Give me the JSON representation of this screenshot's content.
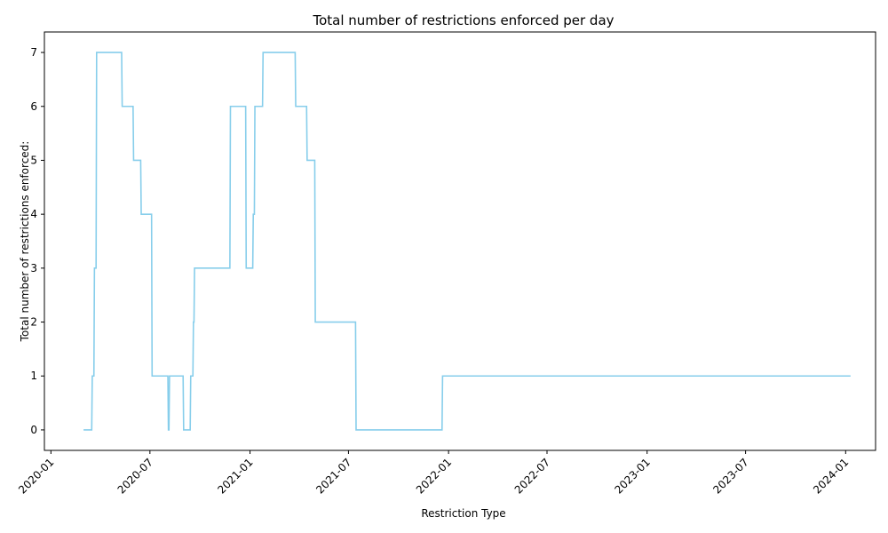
{
  "chart_data": {
    "type": "line",
    "title": "Total number of restrictions enforced per day",
    "xlabel": "Restriction Type",
    "ylabel": "Total number of restrictions enforced:",
    "xlim": [
      "2019-12-20",
      "2024-02-25"
    ],
    "ylim": [
      -0.38,
      7.38
    ],
    "yticks": [
      0,
      1,
      2,
      3,
      4,
      5,
      6,
      7
    ],
    "xticks": [
      "2020-01",
      "2020-07",
      "2021-01",
      "2021-07",
      "2022-01",
      "2022-07",
      "2023-01",
      "2023-07",
      "2024-01"
    ],
    "grid": false,
    "legend": "none",
    "line_color": "#87ceeb",
    "series": [
      {
        "x": [
          "2020-03-01",
          "2020-03-16",
          "2020-03-17",
          "2020-03-20",
          "2020-03-21",
          "2020-03-24",
          "2020-03-25",
          "2020-05-10",
          "2020-05-11",
          "2020-05-31",
          "2020-06-01",
          "2020-06-14",
          "2020-06-15",
          "2020-07-04",
          "2020-07-05",
          "2020-08-03",
          "2020-08-04",
          "2020-08-05",
          "2020-08-06",
          "2020-08-31",
          "2020-09-01",
          "2020-09-13",
          "2020-09-14",
          "2020-09-18",
          "2020-09-19",
          "2020-09-20",
          "2020-09-21",
          "2020-11-25",
          "2020-11-26",
          "2020-12-24",
          "2020-12-25",
          "2021-01-06",
          "2021-01-07",
          "2021-01-09",
          "2021-01-10",
          "2021-01-24",
          "2021-01-25",
          "2021-03-25",
          "2021-03-26",
          "2021-04-15",
          "2021-04-16",
          "2021-04-30",
          "2021-05-01",
          "2021-07-14",
          "2021-07-15",
          "2021-12-20",
          "2021-12-21",
          "2024-01-10"
        ],
        "y": [
          0,
          0,
          1,
          1,
          3,
          3,
          7,
          7,
          6,
          6,
          5,
          5,
          4,
          4,
          1,
          1,
          0,
          0,
          1,
          1,
          0,
          0,
          1,
          1,
          2,
          2,
          3,
          3,
          6,
          6,
          3,
          3,
          4,
          4,
          6,
          6,
          7,
          7,
          6,
          6,
          5,
          5,
          2,
          2,
          0,
          0,
          1,
          1
        ]
      }
    ]
  }
}
